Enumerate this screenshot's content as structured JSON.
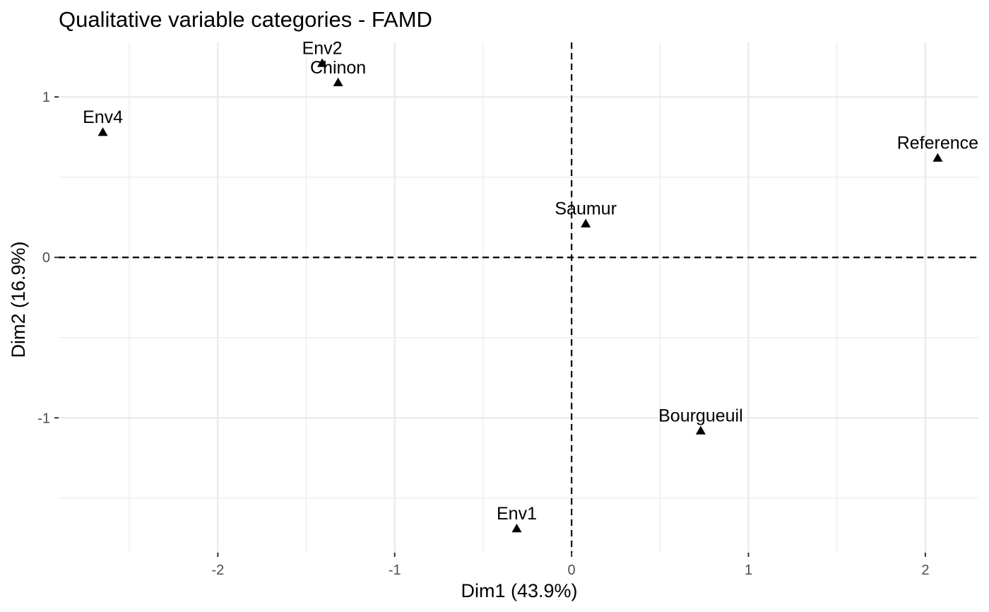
{
  "chart_data": {
    "type": "scatter",
    "title": "Qualitative variable categories - FAMD",
    "xlabel": "Dim1 (43.9%)",
    "ylabel": "Dim2 (16.9%)",
    "xlim": [
      -2.9,
      2.3
    ],
    "ylim": [
      -1.84,
      1.34
    ],
    "x_ticks": [
      -2,
      -1,
      0,
      1,
      2
    ],
    "y_ticks": [
      -1,
      0,
      1
    ],
    "x_tick_labels": [
      "-2",
      "-1",
      "0",
      "1",
      "2"
    ],
    "y_tick_labels": [
      "-1",
      "0",
      "1"
    ],
    "grid": true,
    "reference_lines": {
      "x": 0,
      "y": 0,
      "style": "dashed"
    },
    "marker": "triangle",
    "marker_color": "#000000",
    "points": [
      {
        "label": "Env2",
        "x": -1.41,
        "y": 1.21
      },
      {
        "label": "Chinon",
        "x": -1.32,
        "y": 1.09
      },
      {
        "label": "Env4",
        "x": -2.65,
        "y": 0.78
      },
      {
        "label": "Reference",
        "x": 2.07,
        "y": 0.62
      },
      {
        "label": "Saumur",
        "x": 0.08,
        "y": 0.21
      },
      {
        "label": "Bourgueuil",
        "x": 0.73,
        "y": -1.08
      },
      {
        "label": "Env1",
        "x": -0.31,
        "y": -1.69
      }
    ]
  }
}
